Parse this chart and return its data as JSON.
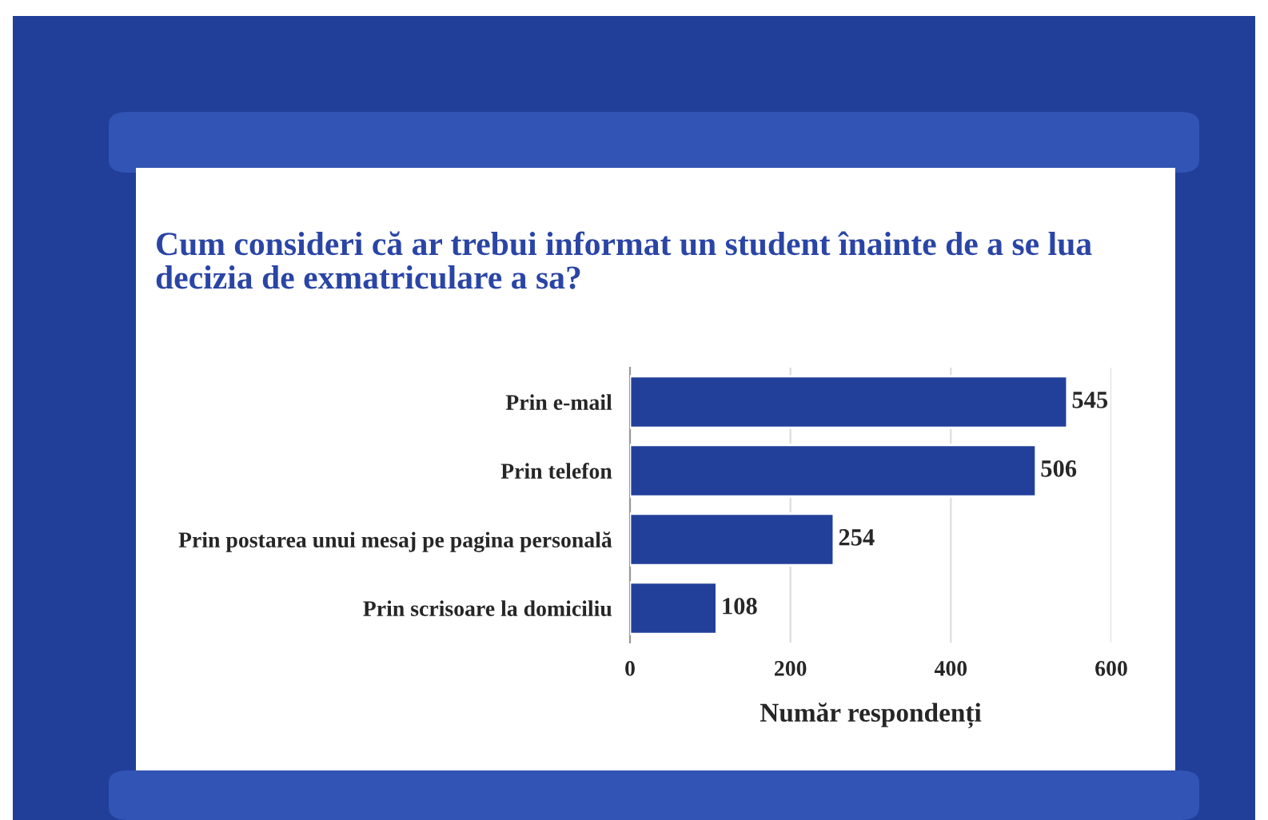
{
  "chart_data": {
    "type": "bar",
    "orientation": "horizontal",
    "title": "Cum consideri că ar trebui informat un student înainte de a se lua decizia de exmatriculare a sa?",
    "xlabel": "Număr respondenți",
    "categories": [
      "Prin e-mail",
      "Prin telefon",
      "Prin postarea unui mesaj pe pagina personală",
      "Prin scrisoare la domiciliu"
    ],
    "values": [
      545,
      506,
      254,
      108
    ],
    "color": "#22409a",
    "xlim": [
      0,
      600
    ],
    "xticks": [
      0,
      200,
      400,
      600
    ],
    "grid": "x",
    "data_labels": true,
    "legend": false
  }
}
